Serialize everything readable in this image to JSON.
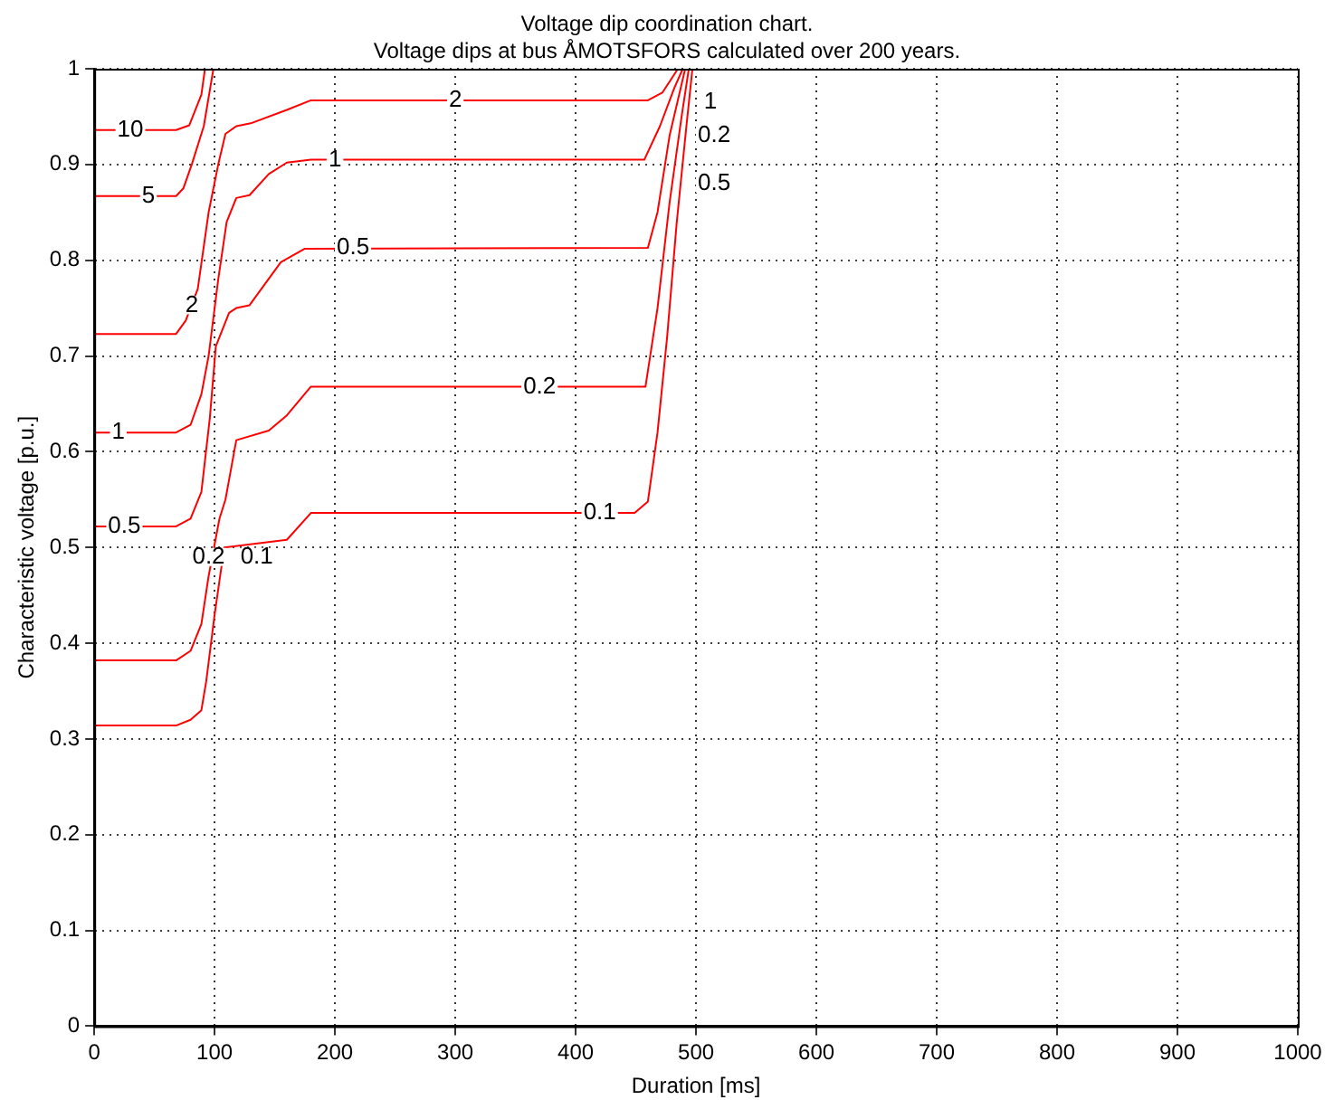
{
  "chart_data": {
    "type": "line",
    "title": "Voltage dip coordination chart.",
    "subtitle": "Voltage dips at bus ÅMOTSFORS calculated over 200 years.",
    "xlabel": "Duration [ms]",
    "ylabel": "Characteristic voltage [p.u.]",
    "xlim": [
      0,
      1000
    ],
    "xticks": [
      0,
      100,
      200,
      300,
      400,
      500,
      600,
      700,
      800,
      900,
      1000
    ],
    "ylim": [
      0,
      1
    ],
    "yticks": [
      0,
      0.1,
      0.2,
      0.3,
      0.4,
      0.5,
      0.6,
      0.7,
      0.8,
      0.9,
      1
    ],
    "grid": true,
    "legend": false,
    "marker": "none",
    "line_style": "solid",
    "series": [
      {
        "color": "#ff0000",
        "x": [
          0,
          68,
          79,
          89,
          92
        ],
        "values": [
          0.936,
          0.936,
          0.941,
          0.973,
          1
        ]
      },
      {
        "color": "#ff0000",
        "x": [
          0,
          68,
          74,
          81,
          91,
          99
        ],
        "values": [
          0.867,
          0.867,
          0.875,
          0.9,
          0.94,
          1
        ]
      },
      {
        "color": "#ff0000",
        "x": [
          0,
          68,
          76,
          86,
          95,
          103,
          109,
          118,
          130,
          160,
          180,
          460,
          472,
          485
        ],
        "values": [
          0.723,
          0.723,
          0.737,
          0.77,
          0.85,
          0.9,
          0.932,
          0.94,
          0.943,
          0.957,
          0.967,
          0.967,
          0.975,
          1
        ]
      },
      {
        "color": "#ff0000",
        "x": [
          0,
          68,
          80,
          89,
          95,
          103,
          110,
          118,
          129,
          145,
          160,
          180,
          457,
          470,
          482,
          489
        ],
        "values": [
          0.62,
          0.62,
          0.628,
          0.66,
          0.7,
          0.78,
          0.84,
          0.865,
          0.868,
          0.89,
          0.902,
          0.905,
          0.905,
          0.94,
          0.98,
          1
        ]
      },
      {
        "color": "#ff0000",
        "x": [
          0,
          68,
          80,
          89,
          96,
          101,
          112,
          118,
          129,
          155,
          175,
          460,
          468,
          478,
          491
        ],
        "values": [
          0.522,
          0.522,
          0.53,
          0.558,
          0.635,
          0.71,
          0.745,
          0.75,
          0.753,
          0.798,
          0.812,
          0.813,
          0.85,
          0.93,
          1
        ]
      },
      {
        "color": "#ff0000",
        "x": [
          0,
          68,
          80,
          89,
          95,
          104,
          109,
          118,
          145,
          160,
          180,
          458,
          468,
          478,
          488,
          494
        ],
        "values": [
          0.382,
          0.382,
          0.392,
          0.42,
          0.47,
          0.53,
          0.55,
          0.612,
          0.622,
          0.638,
          0.668,
          0.668,
          0.75,
          0.86,
          0.95,
          1
        ]
      },
      {
        "color": "#ff0000",
        "x": [
          0,
          68,
          80,
          89,
          93,
          100,
          108,
          160,
          180,
          449,
          460,
          468,
          476,
          484,
          492,
          497
        ],
        "values": [
          0.314,
          0.314,
          0.32,
          0.33,
          0.36,
          0.43,
          0.5,
          0.508,
          0.536,
          0.536,
          0.548,
          0.62,
          0.72,
          0.84,
          0.94,
          1
        ]
      }
    ],
    "annotations": [
      {
        "text": "10",
        "x": 30,
        "y": 0.936
      },
      {
        "text": "5",
        "x": 45,
        "y": 0.867
      },
      {
        "text": "2",
        "x": 81,
        "y": 0.753
      },
      {
        "text": "1",
        "x": 20,
        "y": 0.62
      },
      {
        "text": "0.5",
        "x": 25,
        "y": 0.522
      },
      {
        "text": "0.2",
        "x": 95,
        "y": 0.49
      },
      {
        "text": "0.1",
        "x": 135,
        "y": 0.49
      },
      {
        "text": "2",
        "x": 300,
        "y": 0.967
      },
      {
        "text": "1",
        "x": 200,
        "y": 0.905
      },
      {
        "text": "0.5",
        "x": 215,
        "y": 0.813
      },
      {
        "text": "0.2",
        "x": 370,
        "y": 0.668
      },
      {
        "text": "0.1",
        "x": 420,
        "y": 0.536
      },
      {
        "text": "0.5",
        "x": 515,
        "y": 0.88
      },
      {
        "text": "1",
        "x": 512,
        "y": 0.965
      },
      {
        "text": "0.2",
        "x": 515,
        "y": 0.93
      }
    ]
  }
}
